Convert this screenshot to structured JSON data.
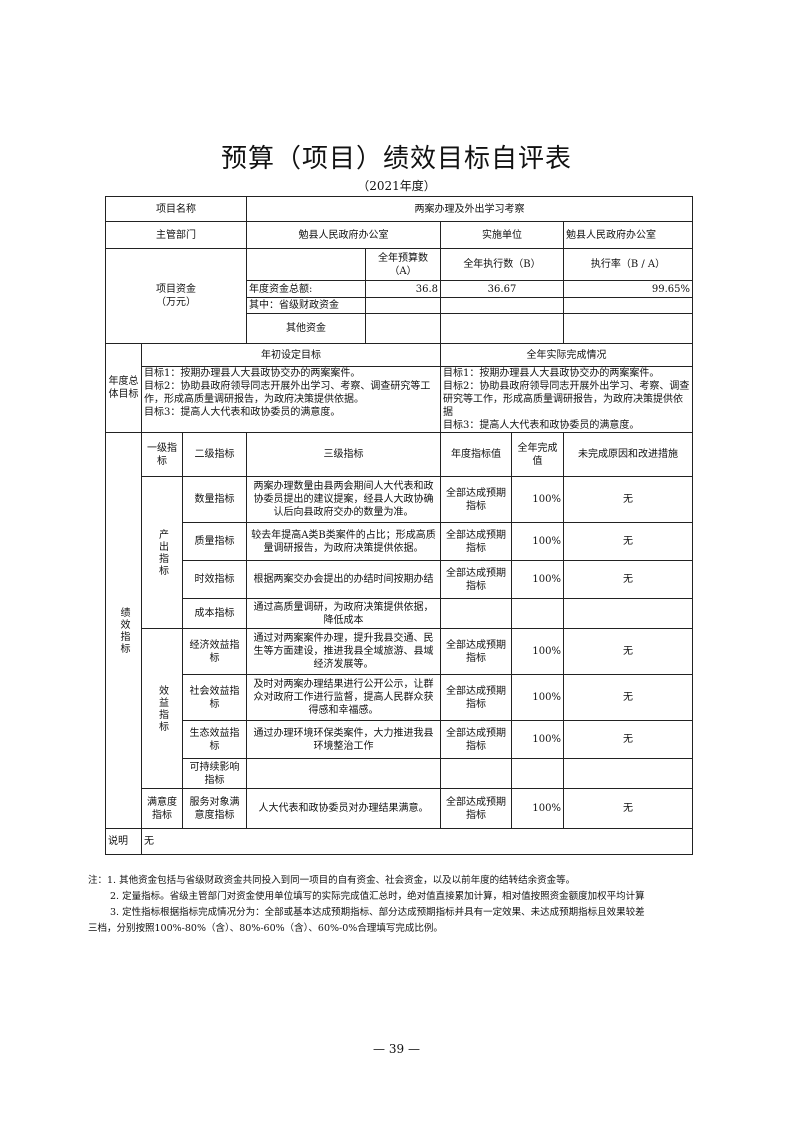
{
  "title": "预算（项目）绩效目标自评表",
  "subtitle": "（2021年度）",
  "project": {
    "name_label": "项目名称",
    "name": "两案办理及外出学习考察",
    "dept_label": "主管部门",
    "dept": "勉县人民政府办公室",
    "impl_label": "实施单位",
    "impl": "勉县人民政府办公室"
  },
  "funds": {
    "label": "项目资金\n（万元）",
    "label1": "项目资金",
    "label2": "（万元）",
    "col_a": "全年预算数（A）",
    "col_b": "全年执行数（B）",
    "col_rate": "执行率（B / A）",
    "total_label": "年度资金总额:",
    "total_a": "36.8",
    "total_b": "36.67",
    "total_rate": "99.65%",
    "prov_label": "其中：省级财政资金",
    "other_label": "其他资金"
  },
  "goals": {
    "label": "年度总体目标",
    "set_header": "年初设定目标",
    "actual_header": "全年实际完成情况",
    "set": [
      "目标1：按期办理县人大县政协交办的两案案件。",
      "目标2：协助县政府领导同志开展外出学习、考察、调查研究等工作，形成高质量调研报告，为政府决策提供依据。",
      "目标3：提高人大代表和政协委员的满意度。"
    ],
    "actual": [
      "目标1：按期办理县人大县政协交办的两案案件。",
      "目标2：协助县政府领导同志开展外出学习、考察、调查研究等工作，形成高质量调研报告，为政府决策提供依据",
      "目标3：提高人大代表和政协委员的满意度。"
    ]
  },
  "indicators": {
    "label": "绩效指标",
    "headers": [
      "一级指标",
      "二级指标",
      "三级指标",
      "年度指标值",
      "全年完成值",
      "未完成原因和改进措施"
    ],
    "groups": [
      {
        "name": "产出指标",
        "rows": [
          {
            "level2": "数量指标",
            "level3": "两案办理数量由县两会期间人大代表和政协委员提出的建议提案，经县人大政协确认后向县政府交办的数量为准。",
            "target": "全部达成预期指标",
            "actual": "100%",
            "reason": "无"
          },
          {
            "level2": "质量指标",
            "level3": "较去年提高A类B类案件的占比；形成高质量调研报告，为政府决策提供依据。",
            "target": "全部达成预期指标",
            "actual": "100%",
            "reason": "无"
          },
          {
            "level2": "时效指标",
            "level3": "根据两案交办会提出的办结时间按期办结",
            "target": "全部达成预期指标",
            "actual": "100%",
            "reason": "无"
          },
          {
            "level2": "成本指标",
            "level3": "通过高质量调研，为政府决策提供依据，降低成本",
            "target": "",
            "actual": "",
            "reason": ""
          }
        ]
      },
      {
        "name": "效益指标",
        "rows": [
          {
            "level2": "经济效益指标",
            "level3": "通过对两案案件办理，提升我县交通、民生等方面建设，推进我县全域旅游、县域经济发展等。",
            "target": "全部达成预期指标",
            "actual": "100%",
            "reason": "无"
          },
          {
            "level2": "社会效益指标",
            "level3": "及时对两案办理结果进行公开公示，让群众对政府工作进行监督，提高人民群众获得感和幸福感。",
            "target": "全部达成预期指标",
            "actual": "100%",
            "reason": "无"
          },
          {
            "level2": "生态效益指标",
            "level3": "通过办理环境环保类案件，大力推进我县环境整治工作",
            "target": "全部达成预期指标",
            "actual": "100%",
            "reason": "无"
          },
          {
            "level2": "可持续影响指标",
            "level3": "",
            "target": "",
            "actual": "",
            "reason": ""
          }
        ]
      },
      {
        "name": "满意度指标",
        "rows": [
          {
            "level2": "服务对象满意度指标",
            "level3": "人大代表和政协委员对办理结果满意。",
            "target": "全部达成预期指标",
            "actual": "100%",
            "reason": "无"
          }
        ]
      }
    ]
  },
  "remark": {
    "label": "说明",
    "value": "无"
  },
  "notes": [
    "注：1. 其他资金包括与省级财政资金共同投入到同一项目的自有资金、社会资金，以及以前年度的结转结余资金等。",
    "2. 定量指标。省级主管部门对资金使用单位填写的实际完成值汇总时，绝对值直接累加计算，相对值按照资金额度加权平均计算",
    "3. 定性指标根据指标完成情况分为：全部或基本达成预期指标、部分达成预期指标并具有一定效果、未达成预期指标且效果较差",
    "三档，分别按照100%-80%（含）、80%-60%（含）、60%-0%合理填写完成比例。"
  ],
  "page_number": "— 39 —"
}
